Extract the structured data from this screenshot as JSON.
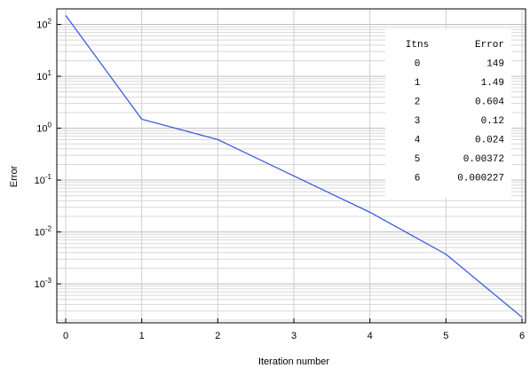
{
  "chart_data": {
    "type": "line",
    "xlabel": "Iteration number",
    "ylabel": "Error",
    "xlim": [
      0,
      6
    ],
    "ylim_log10": [
      -3.75,
      2.3
    ],
    "yscale": "log",
    "grid": true,
    "x_ticks": [
      "0",
      "1",
      "2",
      "3",
      "4",
      "5",
      "6"
    ],
    "y_tick_exponents": [
      "2",
      "1",
      "0",
      "-1",
      "-2",
      "-3"
    ],
    "y_tick_base": "10",
    "line_color": "#3b5bdb",
    "series": [
      {
        "x": [
          0,
          1,
          2,
          3,
          4,
          5,
          6
        ],
        "y": [
          149,
          1.49,
          0.604,
          0.12,
          0.024,
          0.00372,
          0.000227
        ]
      }
    ],
    "table": {
      "headers": [
        "Itns",
        "Error"
      ],
      "rows": [
        [
          "0",
          "149"
        ],
        [
          "1",
          "1.49"
        ],
        [
          "2",
          "0.604"
        ],
        [
          "3",
          "0.12"
        ],
        [
          "4",
          "0.024"
        ],
        [
          "5",
          "0.00372"
        ],
        [
          "6",
          "0.000227"
        ]
      ]
    }
  }
}
